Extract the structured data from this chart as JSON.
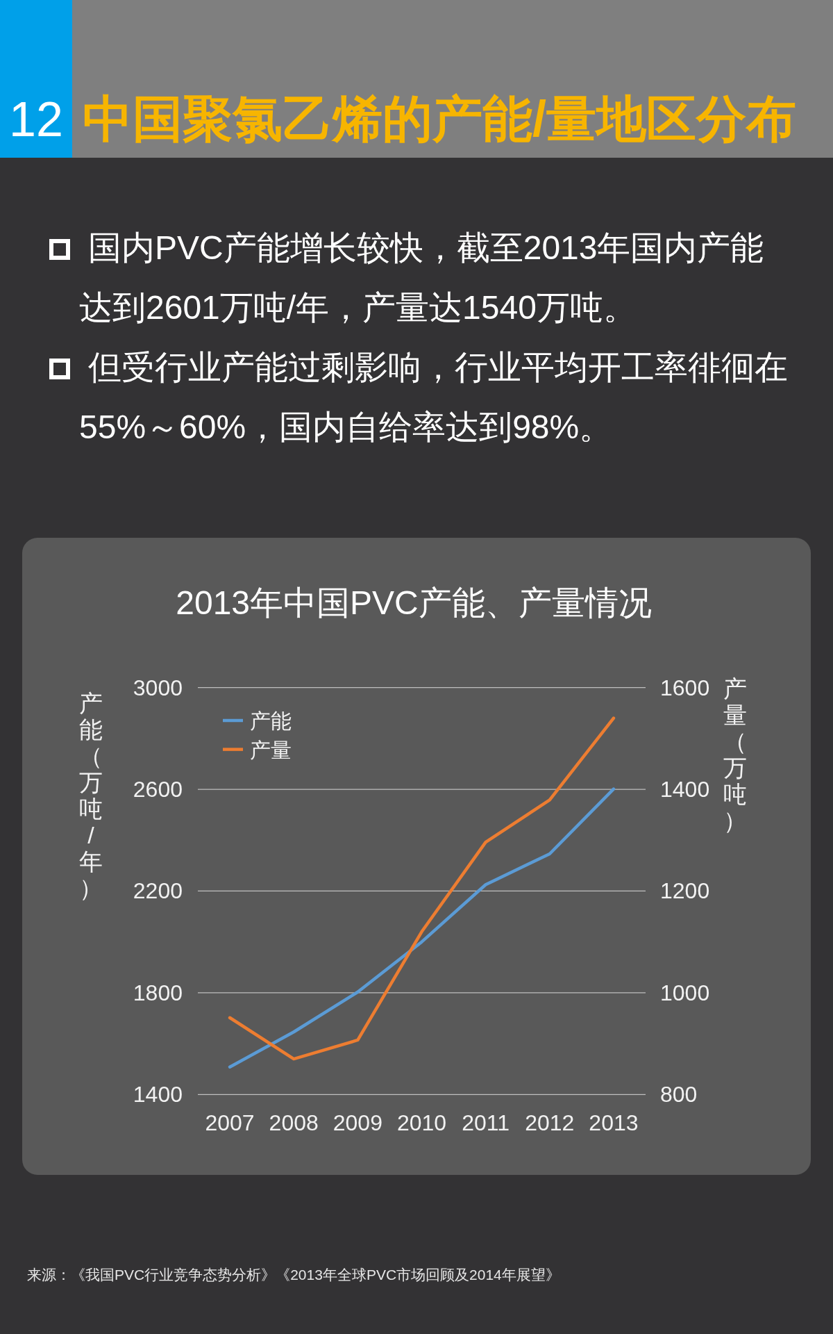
{
  "chart_data": {
    "type": "line",
    "title": "2013年中国PVC产能、产量情况",
    "ylabel": "产能（万吨/年）",
    "y2label": "产量（万吨）",
    "annotations": [
      "12",
      "中国聚氯乙烯的产能/量地区分布",
      "国内PVC产能增长较快，截至2013年国内产能达到2601万吨/年，产量达1540万吨。",
      "但受行业产能过剩影响，行业平均开工率徘徊在55%～60%，国内自给率达到98%。",
      "来源：《我国PVC行业竞争态势分析》《2013年全球PVC市场回顾及2014年展望》"
    ],
    "categories": [
      "2007",
      "2008",
      "2009",
      "2010",
      "2011",
      "2012",
      "2013"
    ],
    "series": [
      {
        "name": "产能",
        "color": "#5b9bd5",
        "values": [
          1508,
          1646,
          1803,
          2000,
          2225,
          2346,
          2601
        ]
      },
      {
        "name": "产量",
        "color": "#ed7d31",
        "axis": "y2",
        "values": [
          951,
          870,
          907,
          1120,
          1296,
          1379,
          1540
        ]
      }
    ],
    "ylim": [
      1400,
      3000
    ],
    "yticks": [
      1400,
      1800,
      2200,
      2600,
      3000
    ],
    "y2lim": [
      800,
      1600
    ],
    "y2ticks": [
      800,
      1000,
      1200,
      1400,
      1600
    ],
    "grid": "y",
    "legend": "top left"
  }
}
